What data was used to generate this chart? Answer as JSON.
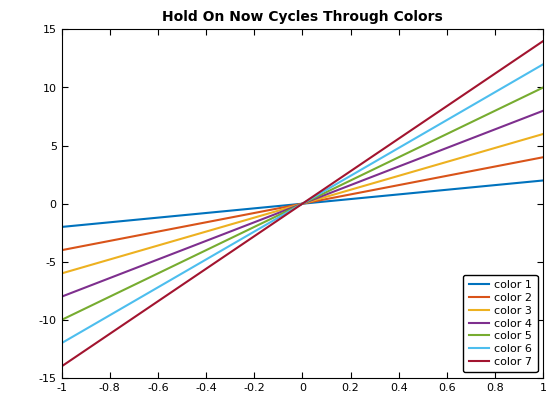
{
  "title": "Hold On Now Cycles Through Colors",
  "xlim": [
    -1,
    1
  ],
  "ylim": [
    -15,
    15
  ],
  "xticks": [
    -1,
    -0.8,
    -0.6,
    -0.4,
    -0.2,
    0,
    0.2,
    0.4,
    0.6,
    0.8,
    1
  ],
  "yticks": [
    -15,
    -10,
    -5,
    0,
    5,
    10,
    15
  ],
  "slopes": [
    2,
    4,
    6,
    8,
    10,
    12,
    14
  ],
  "colors": [
    "#0072BD",
    "#D95319",
    "#EDB120",
    "#7E2F8E",
    "#77AC30",
    "#4DBEEE",
    "#A2142F"
  ],
  "labels": [
    "color 1",
    "color 2",
    "color 3",
    "color 4",
    "color 5",
    "color 6",
    "color 7"
  ],
  "linewidth": 1.5,
  "figsize": [
    5.6,
    4.2
  ],
  "dpi": 100,
  "background_color": "#FFFFFF",
  "title_fontsize": 10,
  "tick_fontsize": 8,
  "legend_fontsize": 8
}
